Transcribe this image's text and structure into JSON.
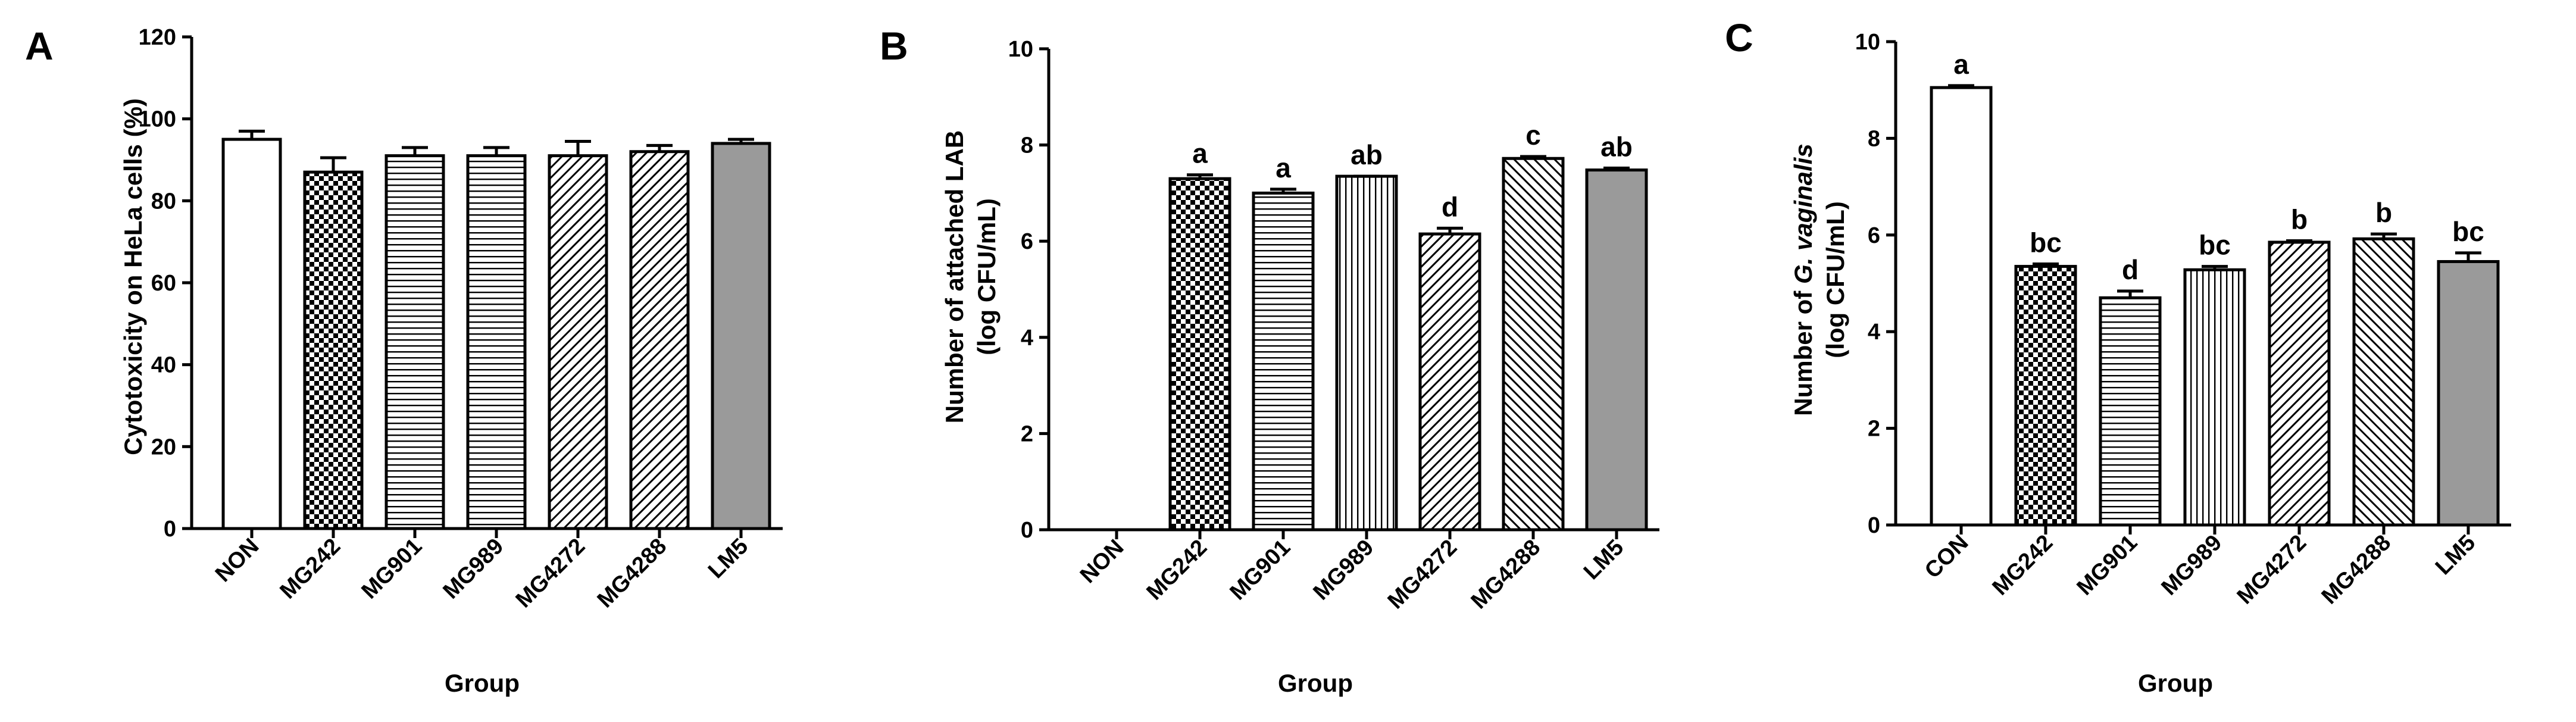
{
  "figure": {
    "panels": [
      "A",
      "B",
      "C"
    ]
  },
  "chart_data": [
    {
      "panel": "A",
      "type": "bar",
      "title": "",
      "xlabel": "Group",
      "ylabel": "Cytotoxicity on HeLa cells (%)",
      "ylim": [
        0,
        120
      ],
      "yticks": [
        "0",
        "20",
        "40",
        "60",
        "80",
        "100",
        "120"
      ],
      "grid": false,
      "categories": [
        "NON",
        "MG242",
        "MG901",
        "MG989",
        "MG4272",
        "MG4288",
        "LM5"
      ],
      "values": [
        95,
        87,
        91,
        91,
        91,
        92,
        94
      ],
      "errors": [
        2,
        3.5,
        2,
        2,
        3.5,
        1.5,
        1
      ],
      "patterns": [
        "white",
        "checker",
        "hlines",
        "hlines",
        "diagB",
        "diagB",
        "gray"
      ],
      "significance": []
    },
    {
      "panel": "B",
      "type": "bar",
      "title": "",
      "xlabel": "Group",
      "ylabel_lines": [
        "Number of attached LAB",
        "(log CFU/mL)"
      ],
      "ylim": [
        0,
        10
      ],
      "yticks": [
        "0",
        "2",
        "4",
        "6",
        "8",
        "10"
      ],
      "grid": false,
      "categories": [
        "NON",
        "MG242",
        "MG901",
        "MG989",
        "MG4272",
        "MG4288",
        "LM5"
      ],
      "values": [
        0,
        7.3,
        7.0,
        7.35,
        6.15,
        7.72,
        7.48
      ],
      "errors": [
        0,
        0.08,
        0.08,
        0.0,
        0.12,
        0.04,
        0.04
      ],
      "patterns": [
        "none",
        "checker",
        "hlines",
        "vlines",
        "diagB",
        "diagF",
        "gray"
      ],
      "significance": [
        "",
        "a",
        "a",
        "ab",
        "d",
        "c",
        "ab"
      ]
    },
    {
      "panel": "C",
      "type": "bar",
      "title": "",
      "xlabel": "Group",
      "ylabel_line1_plain": "Number of ",
      "ylabel_line1_italic": "G. vaginalis",
      "ylabel_line2": "(log CFU/mL)",
      "ylim": [
        0,
        10
      ],
      "yticks": [
        "0",
        "2",
        "4",
        "6",
        "8",
        "10"
      ],
      "grid": false,
      "categories": [
        "CON",
        "MG242",
        "MG901",
        "MG989",
        "MG4272",
        "MG4288",
        "LM5"
      ],
      "values": [
        9.05,
        5.35,
        4.7,
        5.28,
        5.85,
        5.92,
        5.45
      ],
      "errors": [
        0.04,
        0.05,
        0.14,
        0.07,
        0.03,
        0.1,
        0.18
      ],
      "patterns": [
        "white",
        "checker",
        "hlines",
        "vlines",
        "diagB",
        "diagF",
        "gray"
      ],
      "significance": [
        "a",
        "bc",
        "d",
        "bc",
        "b",
        "b",
        "bc"
      ]
    }
  ]
}
